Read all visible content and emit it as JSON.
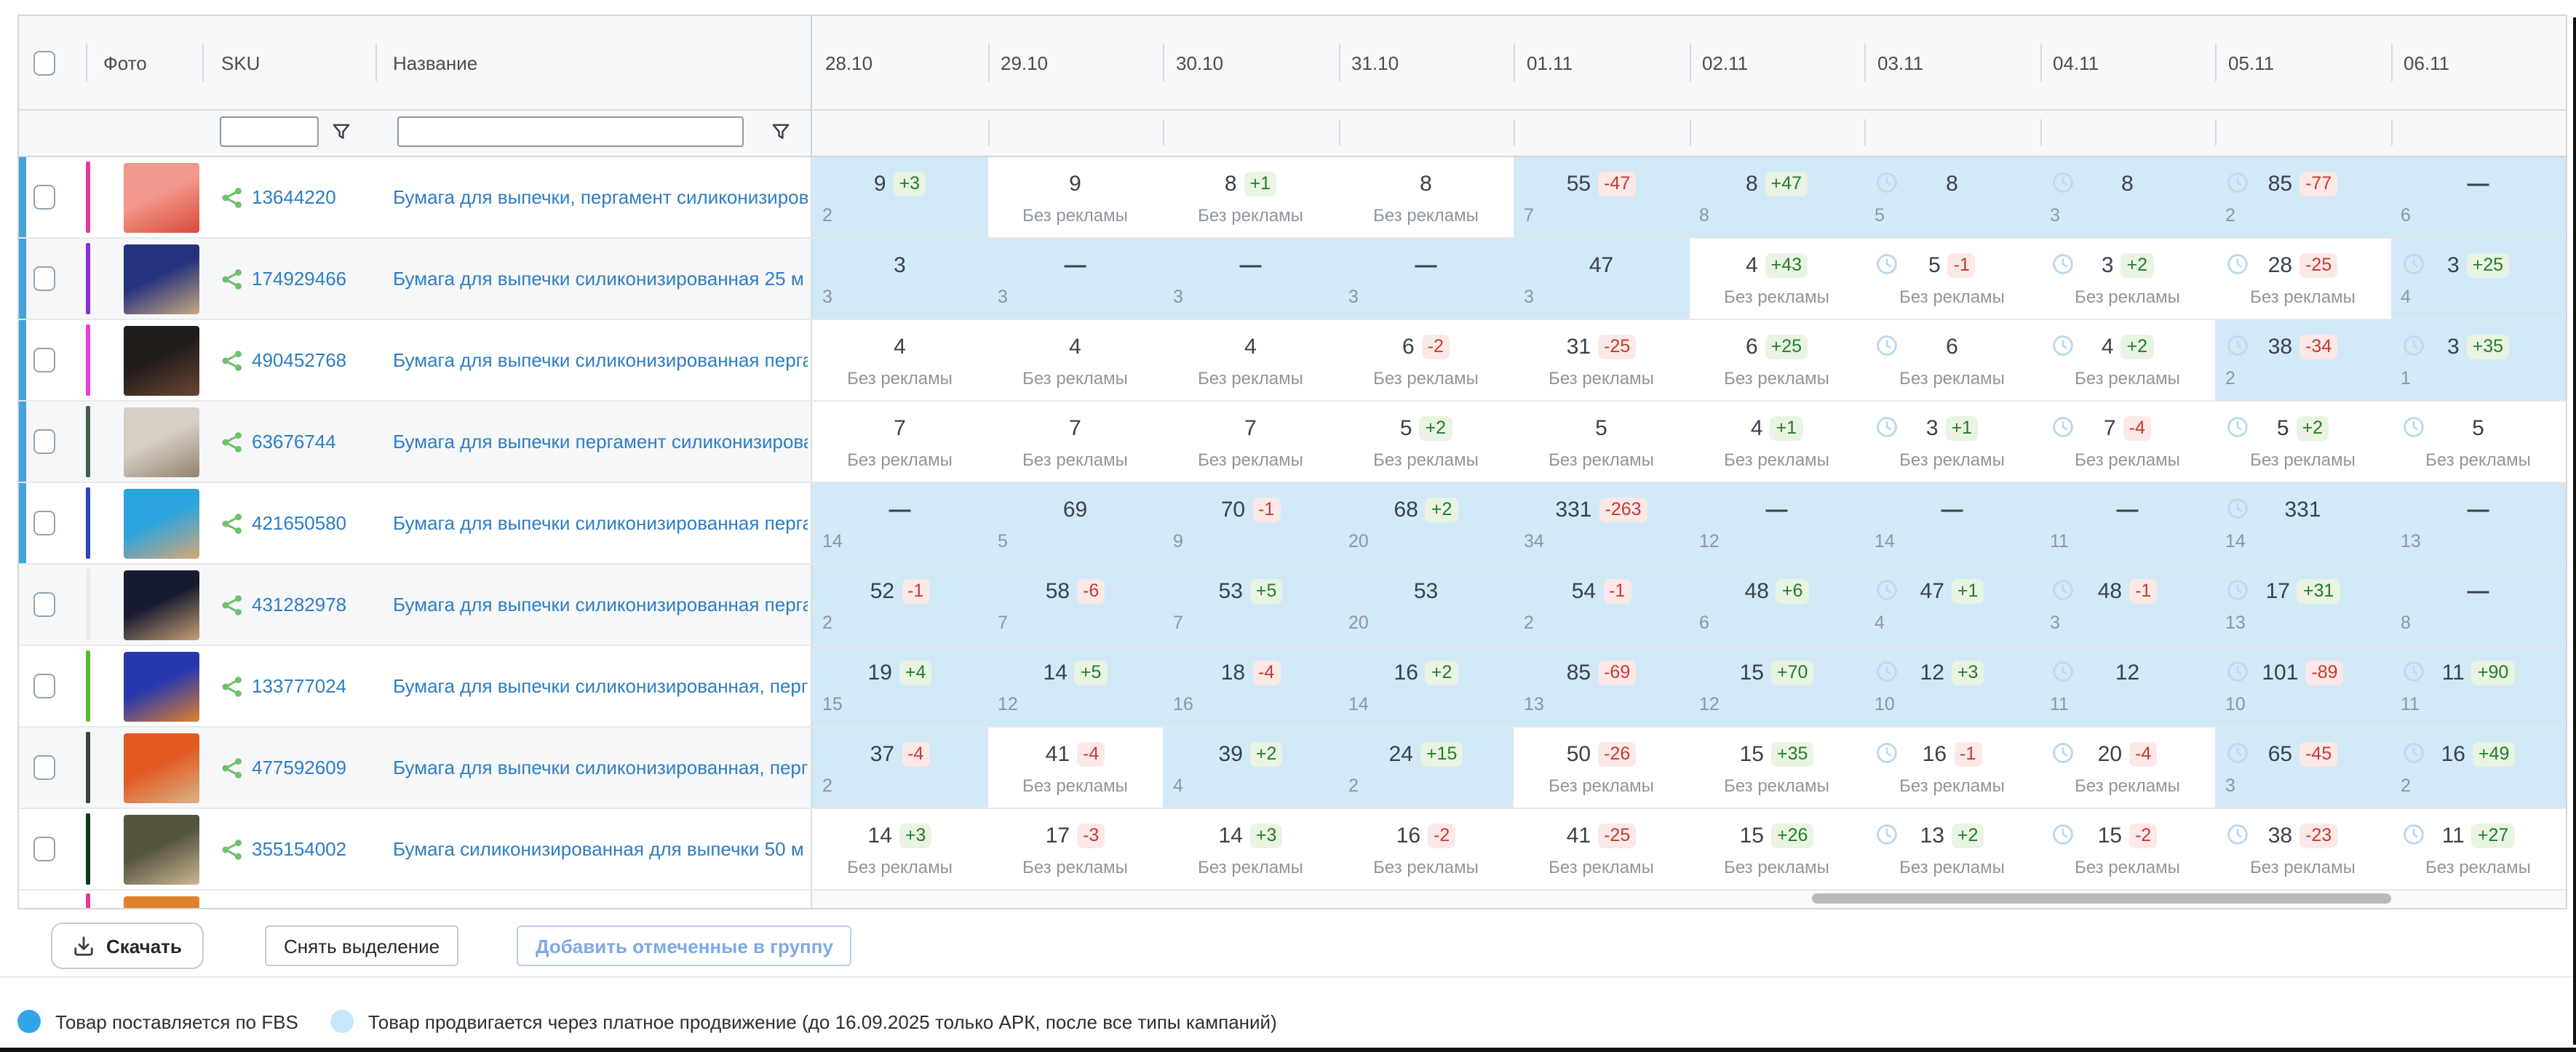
{
  "table": {
    "headers": {
      "photo": "Фото",
      "sku": "SKU",
      "name": "Название"
    },
    "dates": [
      "28.10",
      "29.10",
      "30.10",
      "31.10",
      "01.11",
      "02.11",
      "03.11",
      "04.11",
      "05.11",
      "06.11"
    ],
    "filters": {
      "sku_value": "",
      "name_value": ""
    },
    "no_ads_label": "Без рекламы",
    "rows": [
      {
        "sku": "13644220",
        "name": "Бумага для выпечки, пергамент силиконизированный",
        "fbs": true,
        "stripe": "#e5399b",
        "photo": [
          "#f2978b",
          "#d84a38"
        ],
        "cells": [
          {
            "v": "9",
            "d": "+3",
            "s": "2",
            "p": true
          },
          {
            "v": "9",
            "s": "Без рекламы"
          },
          {
            "v": "8",
            "d": "+1",
            "s": "Без рекламы"
          },
          {
            "v": "8",
            "s": "Без рекламы"
          },
          {
            "v": "55",
            "d": "-47",
            "s": "7",
            "p": true
          },
          {
            "v": "8",
            "d": "+47",
            "s": "8",
            "p": true
          },
          {
            "v": "8",
            "s": "5",
            "p": true,
            "c": true
          },
          {
            "v": "8",
            "s": "3",
            "p": true,
            "c": true
          },
          {
            "v": "85",
            "d": "-77",
            "s": "2",
            "p": true,
            "c": true
          },
          {
            "v": "—",
            "s": "6",
            "p": true
          }
        ]
      },
      {
        "sku": "174929466",
        "name": "Бумага для выпечки силиконизированная 25 м",
        "fbs": true,
        "stripe": "#8d2be0",
        "photo": [
          "#25327d",
          "#c9a87e"
        ],
        "cells": [
          {
            "v": "3",
            "s": "3",
            "p": true
          },
          {
            "v": "—",
            "s": "3",
            "p": true
          },
          {
            "v": "—",
            "s": "3",
            "p": true
          },
          {
            "v": "—",
            "s": "3",
            "p": true
          },
          {
            "v": "47",
            "s": "3",
            "p": true
          },
          {
            "v": "4",
            "d": "+43",
            "s": "Без рекламы"
          },
          {
            "v": "5",
            "d": "-1",
            "s": "Без рекламы",
            "c": true
          },
          {
            "v": "3",
            "d": "+2",
            "s": "Без рекламы",
            "c": true
          },
          {
            "v": "28",
            "d": "-25",
            "s": "Без рекламы",
            "c": true
          },
          {
            "v": "3",
            "d": "+25",
            "s": "4",
            "p": true,
            "c": true
          }
        ]
      },
      {
        "sku": "490452768",
        "name": "Бумага для выпечки силиконизированная пергамент",
        "fbs": true,
        "stripe": "#e23ee2",
        "photo": [
          "#211d1b",
          "#6b4632"
        ],
        "cells": [
          {
            "v": "4",
            "s": "Без рекламы"
          },
          {
            "v": "4",
            "s": "Без рекламы"
          },
          {
            "v": "4",
            "s": "Без рекламы"
          },
          {
            "v": "6",
            "d": "-2",
            "s": "Без рекламы"
          },
          {
            "v": "31",
            "d": "-25",
            "s": "Без рекламы"
          },
          {
            "v": "6",
            "d": "+25",
            "s": "Без рекламы"
          },
          {
            "v": "6",
            "s": "Без рекламы",
            "c": true
          },
          {
            "v": "4",
            "d": "+2",
            "s": "Без рекламы",
            "c": true
          },
          {
            "v": "38",
            "d": "-34",
            "s": "2",
            "p": true,
            "c": true
          },
          {
            "v": "3",
            "d": "+35",
            "s": "1",
            "p": true,
            "c": true
          }
        ]
      },
      {
        "sku": "63676744",
        "name": "Бумага для выпечки пергамент силиконизированный",
        "fbs": true,
        "stripe": "#41604e",
        "photo": [
          "#d6cfc6",
          "#93826d"
        ],
        "cells": [
          {
            "v": "7",
            "s": "Без рекламы"
          },
          {
            "v": "7",
            "s": "Без рекламы"
          },
          {
            "v": "7",
            "s": "Без рекламы"
          },
          {
            "v": "5",
            "d": "+2",
            "s": "Без рекламы"
          },
          {
            "v": "5",
            "s": "Без рекламы"
          },
          {
            "v": "4",
            "d": "+1",
            "s": "Без рекламы"
          },
          {
            "v": "3",
            "d": "+1",
            "s": "Без рекламы",
            "c": true
          },
          {
            "v": "7",
            "d": "-4",
            "s": "Без рекламы",
            "c": true
          },
          {
            "v": "5",
            "d": "+2",
            "s": "Без рекламы",
            "c": true
          },
          {
            "v": "5",
            "s": "Без рекламы",
            "c": true
          }
        ]
      },
      {
        "sku": "421650580",
        "name": "Бумага для выпечки силиконизированная пергамент",
        "fbs": true,
        "stripe": "#2c47bb",
        "photo": [
          "#2ba3de",
          "#d8a874"
        ],
        "cells": [
          {
            "v": "—",
            "s": "14",
            "p": true
          },
          {
            "v": "69",
            "s": "5",
            "p": true
          },
          {
            "v": "70",
            "d": "-1",
            "s": "9",
            "p": true
          },
          {
            "v": "68",
            "d": "+2",
            "s": "20",
            "p": true
          },
          {
            "v": "331",
            "d": "-263",
            "s": "34",
            "p": true
          },
          {
            "v": "—",
            "s": "12",
            "p": true
          },
          {
            "v": "—",
            "s": "14",
            "p": true
          },
          {
            "v": "—",
            "s": "11",
            "p": true
          },
          {
            "v": "331",
            "s": "14",
            "p": true,
            "c": true
          },
          {
            "v": "—",
            "s": "13",
            "p": true
          }
        ]
      },
      {
        "sku": "431282978",
        "name": "Бумага для выпечки силиконизированная пергамент",
        "fbs": false,
        "stripe": "#e9ece9",
        "photo": [
          "#171b30",
          "#c79f74"
        ],
        "cells": [
          {
            "v": "52",
            "d": "-1",
            "s": "2",
            "p": true
          },
          {
            "v": "58",
            "d": "-6",
            "s": "7",
            "p": true
          },
          {
            "v": "53",
            "d": "+5",
            "s": "7",
            "p": true
          },
          {
            "v": "53",
            "s": "20",
            "p": true
          },
          {
            "v": "54",
            "d": "-1",
            "s": "2",
            "p": true
          },
          {
            "v": "48",
            "d": "+6",
            "s": "6",
            "p": true
          },
          {
            "v": "47",
            "d": "+1",
            "s": "4",
            "p": true,
            "c": true
          },
          {
            "v": "48",
            "d": "-1",
            "s": "3",
            "p": true,
            "c": true
          },
          {
            "v": "17",
            "d": "+31",
            "s": "13",
            "p": true,
            "c": true
          },
          {
            "v": "—",
            "s": "8",
            "p": true
          }
        ]
      },
      {
        "sku": "133777024",
        "name": "Бумага для выпечки силиконизированная, пергамент",
        "fbs": false,
        "stripe": "#54bd32",
        "photo": [
          "#2638ac",
          "#e0802f"
        ],
        "cells": [
          {
            "v": "19",
            "d": "+4",
            "s": "15",
            "p": true
          },
          {
            "v": "14",
            "d": "+5",
            "s": "12",
            "p": true
          },
          {
            "v": "18",
            "d": "-4",
            "s": "16",
            "p": true
          },
          {
            "v": "16",
            "d": "+2",
            "s": "14",
            "p": true
          },
          {
            "v": "85",
            "d": "-69",
            "s": "13",
            "p": true
          },
          {
            "v": "15",
            "d": "+70",
            "s": "12",
            "p": true
          },
          {
            "v": "12",
            "d": "+3",
            "s": "10",
            "p": true,
            "c": true
          },
          {
            "v": "12",
            "s": "11",
            "p": true,
            "c": true
          },
          {
            "v": "101",
            "d": "-89",
            "s": "10",
            "p": true,
            "c": true
          },
          {
            "v": "11",
            "d": "+90",
            "s": "11",
            "p": true,
            "c": true
          }
        ]
      },
      {
        "sku": "477592609",
        "name": "Бумага для выпечки силиконизированная, пергамент",
        "fbs": false,
        "stripe": "#3b443d",
        "photo": [
          "#e25a20",
          "#d8b28a"
        ],
        "cells": [
          {
            "v": "37",
            "d": "-4",
            "s": "2",
            "p": true
          },
          {
            "v": "41",
            "d": "-4",
            "s": "Без рекламы"
          },
          {
            "v": "39",
            "d": "+2",
            "s": "4",
            "p": true
          },
          {
            "v": "24",
            "d": "+15",
            "s": "2",
            "p": true
          },
          {
            "v": "50",
            "d": "-26",
            "s": "Без рекламы"
          },
          {
            "v": "15",
            "d": "+35",
            "s": "Без рекламы"
          },
          {
            "v": "16",
            "d": "-1",
            "s": "Без рекламы",
            "c": true
          },
          {
            "v": "20",
            "d": "-4",
            "s": "Без рекламы",
            "c": true
          },
          {
            "v": "65",
            "d": "-45",
            "s": "3",
            "p": true,
            "c": true
          },
          {
            "v": "16",
            "d": "+49",
            "s": "2",
            "p": true,
            "c": true
          }
        ]
      },
      {
        "sku": "355154002",
        "name": "Бумага силиконизированная для выпечки 50 м",
        "fbs": false,
        "stripe": "#12381f",
        "photo": [
          "#54543f",
          "#cdb693"
        ],
        "cells": [
          {
            "v": "14",
            "d": "+3",
            "s": "Без рекламы"
          },
          {
            "v": "17",
            "d": "-3",
            "s": "Без рекламы"
          },
          {
            "v": "14",
            "d": "+3",
            "s": "Без рекламы"
          },
          {
            "v": "16",
            "d": "-2",
            "s": "Без рекламы"
          },
          {
            "v": "41",
            "d": "-25",
            "s": "Без рекламы"
          },
          {
            "v": "15",
            "d": "+26",
            "s": "Без рекламы"
          },
          {
            "v": "13",
            "d": "+2",
            "s": "Без рекламы",
            "c": true
          },
          {
            "v": "15",
            "d": "-2",
            "s": "Без рекламы",
            "c": true
          },
          {
            "v": "38",
            "d": "-23",
            "s": "Без рекламы",
            "c": true
          },
          {
            "v": "11",
            "d": "+27",
            "s": "Без рекламы",
            "c": true
          }
        ]
      }
    ]
  },
  "footer": {
    "download_label": "Скачать",
    "deselect_label": "Снять выделение",
    "add_to_group_label": "Добавить отмеченные в группу"
  },
  "legend": [
    {
      "color": "#31a3e8",
      "label": "Товар поставляется по FBS"
    },
    {
      "color": "#c9e7fb",
      "label": "Товар продвигается через платное продвижение (до 16.09.2025 только АРК, после все типы кампаний)"
    }
  ],
  "colors": {
    "promo_highlight": "#d2e9f8",
    "fbs_bar": "#3fa5dc",
    "link": "#2d7dc3",
    "delta_pos_bg": "#e9f4e2",
    "delta_pos_text": "#257a2d",
    "delta_neg_bg": "#fce9e7",
    "delta_neg_text": "#c33a32"
  },
  "icons": [
    "filter-funnel-icon",
    "share-icon",
    "pending-clock-icon",
    "download-icon",
    "checkbox"
  ]
}
